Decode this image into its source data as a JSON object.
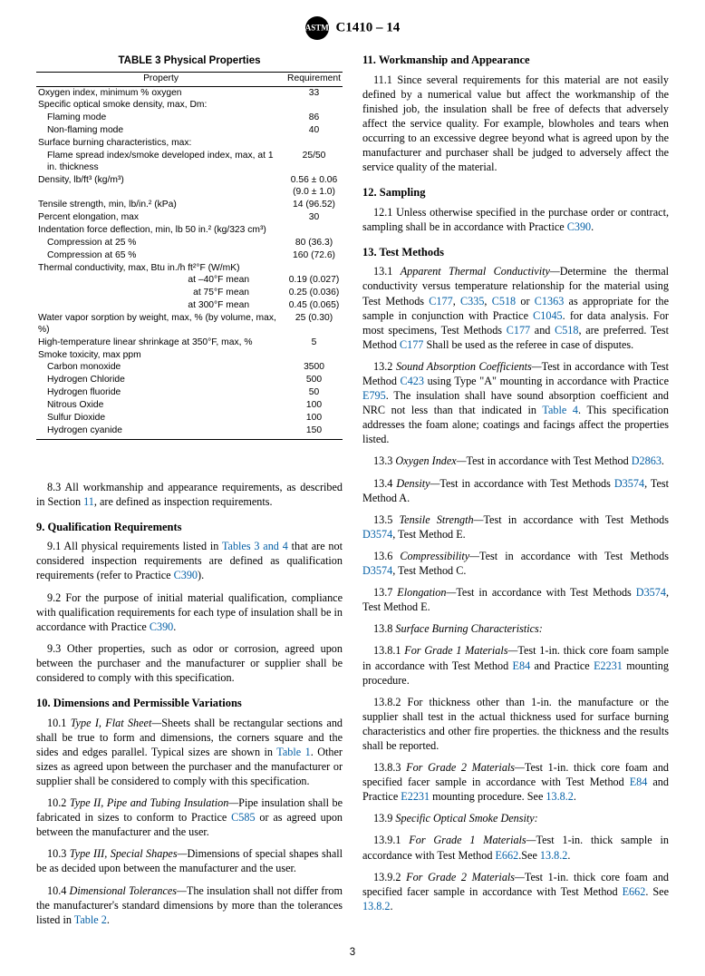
{
  "doc": {
    "designation": "C1410 – 14",
    "pagenum": "3"
  },
  "table3": {
    "title": "TABLE 3 Physical Properties",
    "head_prop": "Property",
    "head_req": "Requirement",
    "rows": [
      {
        "prop": "Oxygen index, minimum % oxygen",
        "req": "33",
        "indent": 0
      },
      {
        "prop": "Specific optical smoke density, max, Dm:",
        "req": "",
        "indent": 0
      },
      {
        "prop": "Flaming mode",
        "req": "86",
        "indent": 1
      },
      {
        "prop": "Non-flaming mode",
        "req": "40",
        "indent": 1
      },
      {
        "prop": "Surface burning characteristics, max:",
        "req": "",
        "indent": 0
      },
      {
        "prop": "Flame spread index/smoke developed index, max, at 1 in. thickness",
        "req": "25/50",
        "indent": 1
      },
      {
        "prop": "Density, lb/ft³ (kg/m³)",
        "req": "0.56 ± 0.06",
        "indent": 0
      },
      {
        "prop": "",
        "req": "(9.0 ± 1.0)",
        "indent": 0
      },
      {
        "prop": "Tensile strength, min, lb/in.² (kPa)",
        "req": "14 (96.52)",
        "indent": 0
      },
      {
        "prop": "Percent elongation, max",
        "req": "30",
        "indent": 0
      },
      {
        "prop": "Indentation force deflection, min, lb 50 in.² (kg/323 cm³)",
        "req": "",
        "indent": 0
      },
      {
        "prop": "Compression at 25 %",
        "req": "80 (36.3)",
        "indent": 1
      },
      {
        "prop": "Compression at 65 %",
        "req": "160 (72.6)",
        "indent": 1
      },
      {
        "prop": "Thermal conductivity, max, Btu in./h ft²°F (W/mK)",
        "req": "",
        "indent": 0
      },
      {
        "prop": "at –40°F mean",
        "req": "0.19 (0.027)",
        "indent": 0,
        "ra": true
      },
      {
        "prop": "at 75°F mean",
        "req": "0.25 (0.036)",
        "indent": 0,
        "ra": true
      },
      {
        "prop": "at 300°F mean",
        "req": "0.45 (0.065)",
        "indent": 0,
        "ra": true
      },
      {
        "prop": "Water vapor sorption by weight, max, % (by volume, max, %)",
        "req": "25 (0.30)",
        "indent": 0
      },
      {
        "prop": "High-temperature linear shrinkage at 350°F, max, %",
        "req": "5",
        "indent": 0
      },
      {
        "prop": "Smoke toxicity, max ppm",
        "req": "",
        "indent": 0
      },
      {
        "prop": "Carbon monoxide",
        "req": "3500",
        "indent": 1
      },
      {
        "prop": "Hydrogen Chloride",
        "req": "500",
        "indent": 1
      },
      {
        "prop": "Hydrogen fluoride",
        "req": "50",
        "indent": 1
      },
      {
        "prop": "Nitrous Oxide",
        "req": "100",
        "indent": 1
      },
      {
        "prop": "Sulfur Dioxide",
        "req": "100",
        "indent": 1
      },
      {
        "prop": "Hydrogen cyanide",
        "req": "150",
        "indent": 1
      }
    ]
  },
  "left": {
    "p8_3": "8.3 All workmanship and appearance requirements, as described in Section ",
    "p8_3_sec": "11",
    "p8_3_tail": ", are defined as inspection requirements.",
    "h9": "9. Qualification Requirements",
    "p9_1a": "9.1 All physical requirements listed in ",
    "p9_1_ref": "Tables 3 and 4",
    "p9_1b": " that are not considered inspection requirements are defined as qualification requirements (refer to Practice ",
    "p9_1_ref2": "C390",
    "p9_1c": ").",
    "p9_2a": "9.2 For the purpose of initial material qualification, compliance with qualification requirements for each type of insulation shall be in accordance with Practice ",
    "p9_2_ref": "C390",
    "p9_2b": ".",
    "p9_3": "9.3 Other properties, such as odor or corrosion, agreed upon between the purchaser and the manufacturer or supplier shall be considered to comply with this specification.",
    "h10": "10. Dimensions and Permissible Variations",
    "p10_1a": "10.1 ",
    "p10_1_i": "Type I, Flat Sheet—",
    "p10_1b": "Sheets shall be rectangular sections and shall be true to form and dimensions, the corners square and the sides and edges parallel. Typical sizes are shown in ",
    "p10_1_ref": "Table 1",
    "p10_1c": ". Other sizes as agreed upon between the purchaser and the manufacturer or supplier shall be considered to comply with this specification.",
    "p10_2a": "10.2 ",
    "p10_2_i": "Type II, Pipe and Tubing Insulation—",
    "p10_2b": "Pipe insulation shall be fabricated in sizes to conform to Practice ",
    "p10_2_ref": "C585",
    "p10_2c": " or as agreed upon between the manufacturer and the user.",
    "p10_3a": "10.3 ",
    "p10_3_i": "Type III, Special Shapes—",
    "p10_3b": "Dimensions of special shapes shall be as decided upon between the manufacturer and the user.",
    "p10_4a": "10.4 ",
    "p10_4_i": "Dimensional Tolerances—",
    "p10_4b": "The insulation shall not differ from the manufacturer's standard dimensions by more than the tolerances listed in ",
    "p10_4_ref": "Table 2",
    "p10_4c": "."
  },
  "right": {
    "h11": "11. Workmanship and Appearance",
    "p11_1": "11.1 Since several requirements for this material are not easily defined by a numerical value but affect the workmanship of the finished job, the insulation shall be free of defects that adversely affect the service quality. For example, blowholes and tears when occurring to an excessive degree beyond what is agreed upon by the manufacturer and purchaser shall be judged to adversely affect the service quality of the material.",
    "h12": "12. Sampling",
    "p12_1a": "12.1 Unless otherwise specified in the purchase order or contract, sampling shall be in accordance with Practice ",
    "p12_1_ref": "C390",
    "p12_1b": ".",
    "h13": "13. Test Methods",
    "p13_1a": "13.1 ",
    "p13_1_i": "Apparent Thermal Conductivity—",
    "p13_1b": "Determine the thermal conductivity versus temperature relationship for the material using Test Methods ",
    "p13_1_r1": "C177",
    "p13_1_s1": ", ",
    "p13_1_r2": "C335",
    "p13_1_s2": ", ",
    "p13_1_r3": "C518",
    "p13_1_s3": " or ",
    "p13_1_r4": "C1363",
    "p13_1c": " as appropriate for the sample in conjunction with Practice ",
    "p13_1_r5": "C1045",
    "p13_1d": ". for data analysis. For most specimens, Test Methods ",
    "p13_1_r6": "C177",
    "p13_1_s4": " and ",
    "p13_1_r7": "C518",
    "p13_1e": ", are preferred. Test Method ",
    "p13_1_r8": "C177",
    "p13_1f": " Shall be used as the referee in case of disputes.",
    "p13_2a": "13.2 ",
    "p13_2_i": "Sound Absorption Coefficients—",
    "p13_2b": "Test in accordance with Test Method ",
    "p13_2_r1": "C423",
    "p13_2c": " using Type \"A\" mounting in accordance with Practice ",
    "p13_2_r2": "E795",
    "p13_2d": ". The insulation shall have sound absorption coefficient and NRC not less than that indicated in ",
    "p13_2_r3": "Table 4",
    "p13_2e": ". This specification addresses the foam alone; coatings and facings affect the properties listed.",
    "p13_3a": "13.3 ",
    "p13_3_i": "Oxygen Index—",
    "p13_3b": "Test in accordance with Test Method ",
    "p13_3_r": "D2863",
    "p13_3c": ".",
    "p13_4a": "13.4 ",
    "p13_4_i": "Density—",
    "p13_4b": "Test in accordance with Test Methods ",
    "p13_4_r": "D3574",
    "p13_4c": ", Test Method A.",
    "p13_5a": "13.5 ",
    "p13_5_i": "Tensile Strength—",
    "p13_5b": "Test in accordance with Test Methods ",
    "p13_5_r": "D3574",
    "p13_5c": ", Test Method E.",
    "p13_6a": "13.6 ",
    "p13_6_i": "Compressibility—",
    "p13_6b": "Test in accordance with Test Methods ",
    "p13_6_r": "D3574",
    "p13_6c": ", Test Method C.",
    "p13_7a": "13.7 ",
    "p13_7_i": "Elongation—",
    "p13_7b": "Test in accordance with Test Methods ",
    "p13_7_r": "D3574",
    "p13_7c": ", Test Method E.",
    "p13_8a": "13.8 ",
    "p13_8_i": "Surface Burning Characteristics:",
    "p13_8_1a": "13.8.1 ",
    "p13_8_1_i": "For Grade 1 Materials—",
    "p13_8_1b": "Test 1-in. thick core foam sample in accordance with Test Method ",
    "p13_8_1_r1": "E84",
    "p13_8_1c": " and Practice ",
    "p13_8_1_r2": "E2231",
    "p13_8_1d": " mounting procedure.",
    "p13_8_2": "13.8.2 For thickness other than 1-in. the manufacture or the supplier shall test in the actual thickness used for surface burning characteristics and other fire properties. the thickness and the results shall be reported.",
    "p13_8_3a": "13.8.3 ",
    "p13_8_3_i": "For Grade 2 Materials—",
    "p13_8_3b": "Test 1-in. thick core foam and specified facer sample in accordance with Test Method ",
    "p13_8_3_r1": "E84",
    "p13_8_3c": " and Practice ",
    "p13_8_3_r2": "E2231",
    "p13_8_3d": " mounting procedure. See ",
    "p13_8_3_r3": "13.8.2",
    "p13_8_3e": ".",
    "p13_9a": "13.9 ",
    "p13_9_i": "Specific Optical Smoke Density:",
    "p13_9_1a": "13.9.1 ",
    "p13_9_1_i": "For Grade 1 Materials—",
    "p13_9_1b": "Test 1-in. thick sample in accordance with Test Method ",
    "p13_9_1_r": "E662",
    "p13_9_1c": ".See ",
    "p13_9_1_r2": "13.8.2",
    "p13_9_1d": ".",
    "p13_9_2a": "13.9.2 ",
    "p13_9_2_i": "For Grade 2 Materials—",
    "p13_9_2b": "Test 1-in. thick core foam and specified facer sample in accordance with Test Method ",
    "p13_9_2_r": "E662",
    "p13_9_2c": ". See ",
    "p13_9_2_r2": "13.8.2",
    "p13_9_2d": "."
  }
}
